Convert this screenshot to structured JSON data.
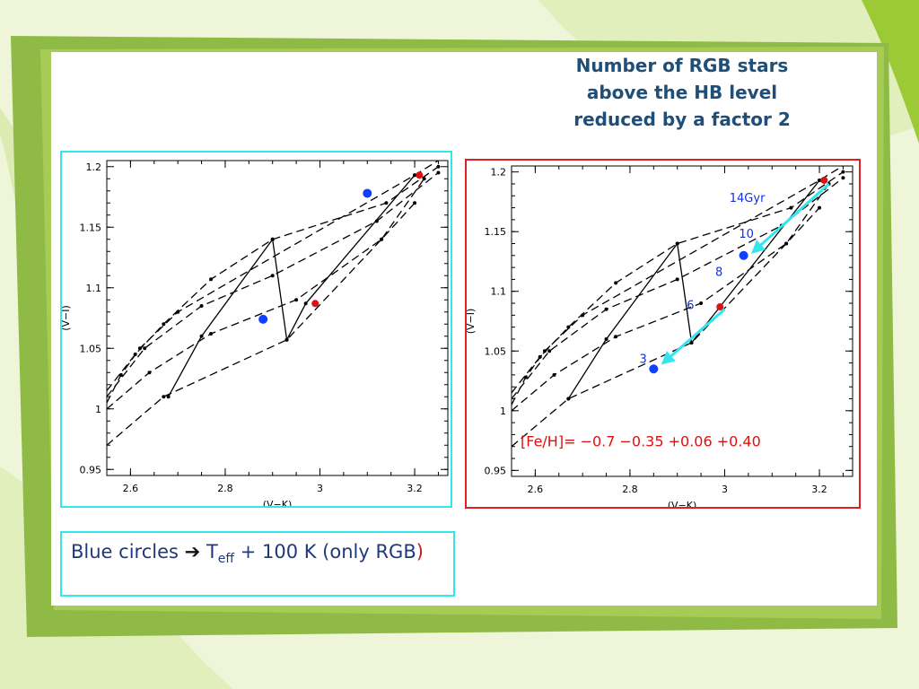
{
  "slide": {
    "title_lines": [
      "Number of RGB stars",
      "above the HB level",
      "reduced by a factor 2"
    ],
    "note": {
      "text_before": "Blue circles",
      "arrow": "➔",
      "T": "T",
      "sub": "eff",
      "text_after": " + 100 K (only RGB",
      "paren": ")"
    }
  },
  "colors": {
    "cyan": "#33e6ee",
    "red_border": "#e02020",
    "title": "#1f4e79",
    "blue_point": "#1040ff",
    "red_point": "#e01010",
    "arrow": "#33e6ee"
  },
  "chart_data": [
    {
      "type": "line",
      "xlabel": "(V−K)",
      "ylabel": "(V−I)",
      "xlim": [
        2.55,
        3.27
      ],
      "ylim": [
        0.945,
        1.205
      ],
      "xticks": [
        "2.6",
        "2.8",
        "3",
        "3.2"
      ],
      "yticks": [
        "0.95",
        "1",
        "1.05",
        "1.1",
        "1.15",
        "1.2"
      ],
      "series": [
        {
          "style": "dashed",
          "x": [
            2.55,
            2.58,
            2.62,
            2.7,
            3.2,
            3.27
          ],
          "y": [
            1.005,
            1.028,
            1.05,
            1.08,
            1.193,
            1.21
          ]
        },
        {
          "style": "dashed",
          "x": [
            2.55,
            2.61,
            2.67,
            2.77,
            2.9,
            3.14,
            3.25
          ],
          "y": [
            1.015,
            1.045,
            1.07,
            1.107,
            1.14,
            1.17,
            1.2
          ]
        },
        {
          "style": "dashed",
          "x": [
            2.55,
            2.63,
            2.75,
            2.9,
            3.12,
            3.25
          ],
          "y": [
            1.01,
            1.05,
            1.085,
            1.11,
            1.155,
            1.195
          ]
        },
        {
          "style": "dashed",
          "x": [
            2.55,
            2.64,
            2.77,
            2.95,
            3.13,
            3.22
          ],
          "y": [
            1.0,
            1.03,
            1.062,
            1.09,
            1.14,
            1.19
          ]
        },
        {
          "style": "dashed",
          "x": [
            2.55,
            2.67,
            2.93,
            3.13,
            3.2
          ],
          "y": [
            0.97,
            1.01,
            1.057,
            1.14,
            1.17
          ]
        },
        {
          "style": "solid",
          "x": [
            2.68,
            2.75,
            2.9,
            2.93,
            2.97,
            3.2
          ],
          "y": [
            1.01,
            1.06,
            1.14,
            1.057,
            1.087,
            1.193
          ]
        }
      ],
      "markers": [
        {
          "x": 2.88,
          "y": 1.074,
          "color": "blue"
        },
        {
          "x": 3.1,
          "y": 1.178,
          "color": "blue"
        },
        {
          "x": 2.99,
          "y": 1.087,
          "color": "red"
        },
        {
          "x": 3.21,
          "y": 1.193,
          "color": "red"
        }
      ]
    },
    {
      "type": "line",
      "xlabel": "(V−K)",
      "ylabel": "(V−I)",
      "xlim": [
        2.55,
        3.27
      ],
      "ylim": [
        0.945,
        1.205
      ],
      "xticks": [
        "2.6",
        "2.8",
        "3",
        "3.2"
      ],
      "yticks": [
        "0.95",
        "1",
        "1.05",
        "1.1",
        "1.15",
        "1.2"
      ],
      "series": [
        {
          "style": "dashed",
          "x": [
            2.55,
            2.58,
            2.62,
            2.7,
            3.2,
            3.27
          ],
          "y": [
            1.005,
            1.028,
            1.05,
            1.08,
            1.193,
            1.21
          ]
        },
        {
          "style": "dashed",
          "x": [
            2.55,
            2.61,
            2.67,
            2.77,
            2.9,
            3.14,
            3.25
          ],
          "y": [
            1.015,
            1.045,
            1.07,
            1.107,
            1.14,
            1.17,
            1.2
          ]
        },
        {
          "style": "dashed",
          "x": [
            2.55,
            2.63,
            2.75,
            2.9,
            3.12,
            3.25
          ],
          "y": [
            1.01,
            1.05,
            1.085,
            1.11,
            1.155,
            1.195
          ]
        },
        {
          "style": "dashed",
          "x": [
            2.55,
            2.64,
            2.77,
            2.95,
            3.13,
            3.22
          ],
          "y": [
            1.0,
            1.03,
            1.062,
            1.09,
            1.14,
            1.19
          ]
        },
        {
          "style": "dashed",
          "x": [
            2.55,
            2.67,
            2.93,
            3.13,
            3.2
          ],
          "y": [
            0.97,
            1.01,
            1.057,
            1.14,
            1.17
          ]
        },
        {
          "style": "solid",
          "x": [
            2.67,
            2.75,
            2.9,
            2.93,
            2.99,
            3.2
          ],
          "y": [
            1.01,
            1.06,
            1.14,
            1.057,
            1.087,
            1.193
          ]
        }
      ],
      "markers": [
        {
          "x": 2.85,
          "y": 1.035,
          "color": "blue"
        },
        {
          "x": 3.04,
          "y": 1.13,
          "color": "blue"
        },
        {
          "x": 2.99,
          "y": 1.087,
          "color": "red"
        },
        {
          "x": 3.21,
          "y": 1.193,
          "color": "red"
        }
      ],
      "annotations": [
        {
          "text": "14Gyr",
          "x": 3.01,
          "y": 1.175
        },
        {
          "text": "10",
          "x": 3.03,
          "y": 1.145
        },
        {
          "text": "8",
          "x": 2.98,
          "y": 1.113
        },
        {
          "text": "6",
          "x": 2.92,
          "y": 1.085
        },
        {
          "text": "3",
          "x": 2.82,
          "y": 1.04
        }
      ],
      "arrows": [
        {
          "from": [
            3.22,
            1.19
          ],
          "to": [
            3.06,
            1.133
          ]
        },
        {
          "from": [
            3.0,
            1.085
          ],
          "to": [
            2.87,
            1.04
          ]
        }
      ],
      "legend_text": "[Fe/H]= −0.7   −0.35   +0.06  +0.40"
    }
  ]
}
